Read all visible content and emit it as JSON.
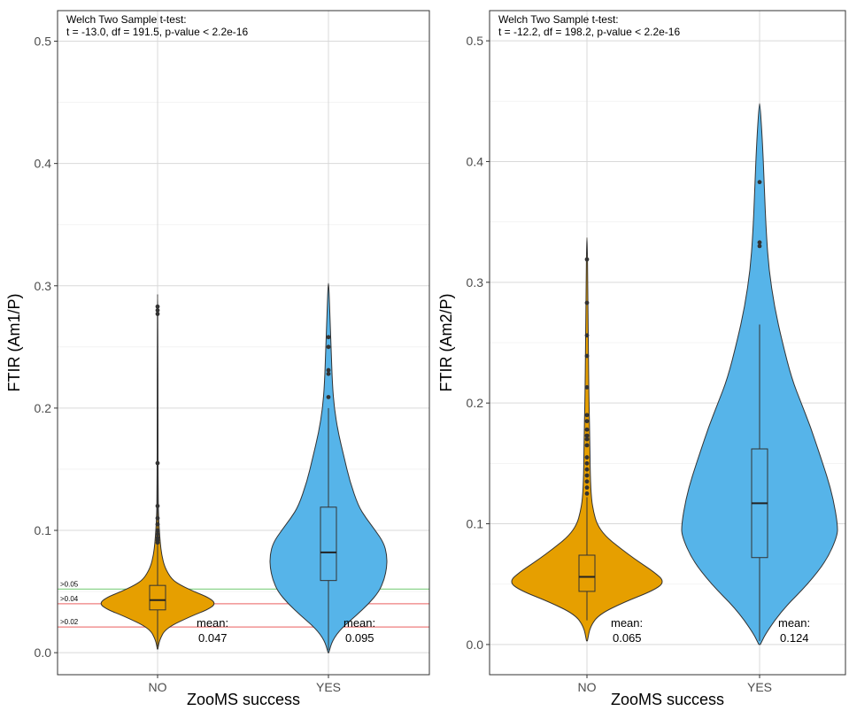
{
  "chart_data": [
    {
      "type": "violin",
      "xlabel": "ZooMS success",
      "ylabel": "FTIR (Am1/P)",
      "ylim": [
        -0.018,
        0.525
      ],
      "yticks": [
        0.0,
        0.1,
        0.2,
        0.3,
        0.4,
        0.5
      ],
      "ytick_labels": [
        "0.0",
        "0.1",
        "0.2",
        "0.3",
        "0.4",
        "0.5"
      ],
      "grid": true,
      "stat_lines": [
        "Welch Two Sample t-test:",
        "t = -13.0, df = 191.5, p-value < 2.2e-16"
      ],
      "thresholds": [
        {
          "label": ">0.05",
          "value": 0.052,
          "color": "#7fcf7f"
        },
        {
          "label": ">0.04",
          "value": 0.04,
          "color": "#ef7f7f"
        },
        {
          "label": ">0.02",
          "value": 0.021,
          "color": "#ef7f7f"
        }
      ],
      "groups": [
        {
          "category": "NO",
          "color": "#e69f00",
          "min": 0.003,
          "max": 0.293,
          "q1": 0.035,
          "median": 0.043,
          "q3": 0.055,
          "whisker_low": 0.005,
          "whisker_high": 0.285,
          "mean_label": "mean:",
          "mean_value": "0.047",
          "outliers": [
            0.283,
            0.28,
            0.277,
            0.155,
            0.12,
            0.11,
            0.105,
            0.1,
            0.097,
            0.094,
            0.092,
            0.09
          ],
          "density": [
            [
              0.003,
              0.005
            ],
            [
              0.01,
              0.03
            ],
            [
              0.02,
              0.14
            ],
            [
              0.03,
              0.58
            ],
            [
              0.035,
              0.85
            ],
            [
              0.04,
              1.0
            ],
            [
              0.045,
              0.88
            ],
            [
              0.05,
              0.62
            ],
            [
              0.055,
              0.4
            ],
            [
              0.06,
              0.24
            ],
            [
              0.07,
              0.12
            ],
            [
              0.08,
              0.07
            ],
            [
              0.09,
              0.045
            ],
            [
              0.1,
              0.03
            ],
            [
              0.11,
              0.018
            ],
            [
              0.12,
              0.012
            ],
            [
              0.15,
              0.008
            ],
            [
              0.2,
              0.006
            ],
            [
              0.25,
              0.005
            ],
            [
              0.293,
              0.002
            ]
          ]
        },
        {
          "category": "YES",
          "color": "#56b4e9",
          "min": 0.0,
          "max": 0.302,
          "q1": 0.059,
          "median": 0.082,
          "q3": 0.119,
          "whisker_low": 0.002,
          "whisker_high": 0.2,
          "mean_label": "mean:",
          "mean_value": "0.095",
          "outliers": [
            0.258,
            0.25,
            0.231,
            0.228,
            0.209
          ],
          "density": [
            [
              0.0,
              0.005
            ],
            [
              0.01,
              0.06
            ],
            [
              0.02,
              0.2
            ],
            [
              0.03,
              0.42
            ],
            [
              0.04,
              0.62
            ],
            [
              0.05,
              0.78
            ],
            [
              0.06,
              0.86
            ],
            [
              0.07,
              0.9
            ],
            [
              0.08,
              0.9
            ],
            [
              0.09,
              0.85
            ],
            [
              0.1,
              0.72
            ],
            [
              0.11,
              0.58
            ],
            [
              0.12,
              0.46
            ],
            [
              0.14,
              0.33
            ],
            [
              0.16,
              0.24
            ],
            [
              0.18,
              0.15
            ],
            [
              0.2,
              0.09
            ],
            [
              0.22,
              0.06
            ],
            [
              0.25,
              0.04
            ],
            [
              0.28,
              0.02
            ],
            [
              0.302,
              0.005
            ]
          ]
        }
      ]
    },
    {
      "type": "violin",
      "xlabel": "ZooMS success",
      "ylabel": "FTIR (Am2/P)",
      "ylim": [
        -0.025,
        0.525
      ],
      "yticks": [
        0.0,
        0.1,
        0.2,
        0.3,
        0.4,
        0.5
      ],
      "ytick_labels": [
        "0.0",
        "0.1",
        "0.2",
        "0.3",
        "0.4",
        "0.5"
      ],
      "grid": true,
      "stat_lines": [
        "Welch Two Sample t-test:",
        "t = -12.2, df = 198.2, p-value < 2.2e-16"
      ],
      "thresholds": [],
      "groups": [
        {
          "category": "NO",
          "color": "#e69f00",
          "min": 0.003,
          "max": 0.337,
          "q1": 0.044,
          "median": 0.056,
          "q3": 0.074,
          "whisker_low": 0.02,
          "whisker_high": 0.122,
          "mean_label": "mean:",
          "mean_value": "0.065",
          "outliers": [
            0.319,
            0.283,
            0.256,
            0.239,
            0.213,
            0.19,
            0.185,
            0.178,
            0.173,
            0.17,
            0.165,
            0.155,
            0.15,
            0.145,
            0.14,
            0.135,
            0.13,
            0.125
          ],
          "density": [
            [
              0.003,
              0.005
            ],
            [
              0.015,
              0.04
            ],
            [
              0.025,
              0.15
            ],
            [
              0.035,
              0.45
            ],
            [
              0.045,
              0.82
            ],
            [
              0.052,
              0.95
            ],
            [
              0.06,
              0.82
            ],
            [
              0.07,
              0.6
            ],
            [
              0.08,
              0.4
            ],
            [
              0.09,
              0.22
            ],
            [
              0.1,
              0.12
            ],
            [
              0.11,
              0.08
            ],
            [
              0.12,
              0.055
            ],
            [
              0.14,
              0.04
            ],
            [
              0.17,
              0.035
            ],
            [
              0.2,
              0.025
            ],
            [
              0.25,
              0.015
            ],
            [
              0.3,
              0.01
            ],
            [
              0.337,
              0.003
            ]
          ]
        },
        {
          "category": "YES",
          "color": "#56b4e9",
          "min": 0.0,
          "max": 0.448,
          "q1": 0.072,
          "median": 0.117,
          "q3": 0.162,
          "whisker_low": 0.003,
          "whisker_high": 0.265,
          "mean_label": "mean:",
          "mean_value": "0.124",
          "outliers": [
            0.383,
            0.333,
            0.33
          ],
          "density": [
            [
              0.0,
              0.005
            ],
            [
              0.01,
              0.05
            ],
            [
              0.03,
              0.18
            ],
            [
              0.05,
              0.36
            ],
            [
              0.07,
              0.5
            ],
            [
              0.09,
              0.58
            ],
            [
              0.1,
              0.58
            ],
            [
              0.12,
              0.55
            ],
            [
              0.14,
              0.5
            ],
            [
              0.16,
              0.44
            ],
            [
              0.18,
              0.38
            ],
            [
              0.2,
              0.31
            ],
            [
              0.22,
              0.24
            ],
            [
              0.25,
              0.17
            ],
            [
              0.28,
              0.11
            ],
            [
              0.31,
              0.07
            ],
            [
              0.34,
              0.05
            ],
            [
              0.38,
              0.035
            ],
            [
              0.42,
              0.02
            ],
            [
              0.448,
              0.003
            ]
          ]
        }
      ]
    }
  ]
}
